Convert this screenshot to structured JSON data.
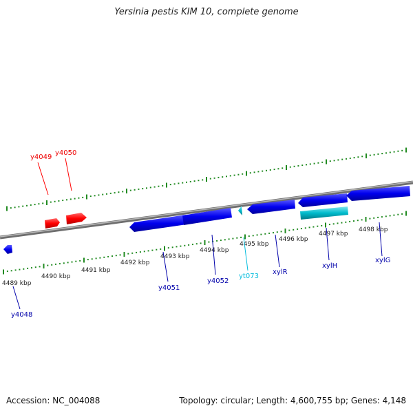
{
  "title": "Yersinia pestis KIM 10, complete genome",
  "accession": "Accession: NC_004088",
  "stats": "Topology: circular; Length: 4,600,755 bp; Genes: 4,148",
  "colors": {
    "forward_gene": "#ff0000",
    "reverse_gene": "#0000ee",
    "rna_gene": "#00bbcc",
    "tick": "#228b22",
    "backbone": "#888888"
  },
  "scale_labels": [
    "4489 kbp",
    "4490 kbp",
    "4491 kbp",
    "4492 kbp",
    "4493 kbp",
    "4494 kbp",
    "4495 kbp",
    "4496 kbp",
    "4497 kbp",
    "4498 kbp"
  ],
  "genes": [
    {
      "id": "y4048",
      "strand": "reverse"
    },
    {
      "id": "y4049",
      "strand": "forward"
    },
    {
      "id": "y4050",
      "strand": "forward"
    },
    {
      "id": "y4051",
      "strand": "reverse"
    },
    {
      "id": "y4052",
      "strand": "reverse"
    },
    {
      "id": "yt073",
      "strand": "reverse"
    },
    {
      "id": "xylR",
      "strand": "reverse"
    },
    {
      "id": "xylH",
      "strand": "reverse"
    },
    {
      "id": "xylG",
      "strand": "reverse"
    }
  ]
}
